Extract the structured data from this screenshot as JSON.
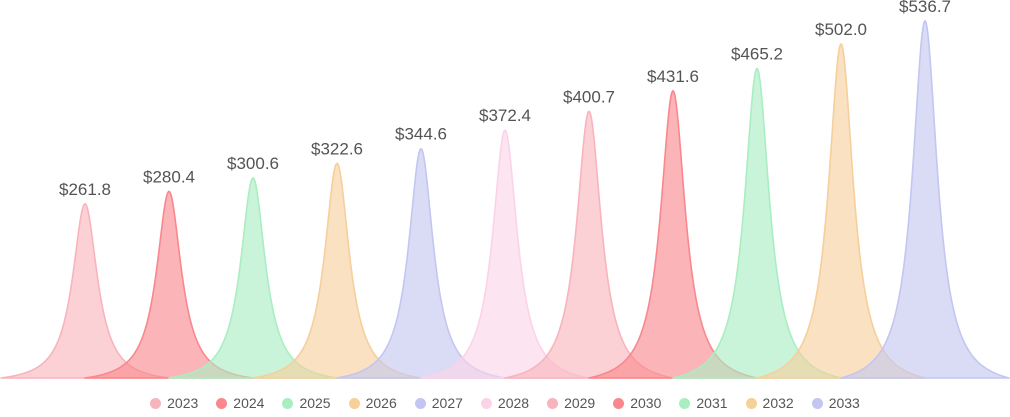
{
  "chart_data": {
    "type": "area",
    "subtype": "pictorial-spike-series",
    "title": "",
    "xlabel": "",
    "ylabel": "",
    "categories": [
      "2023",
      "2024",
      "2025",
      "2026",
      "2027",
      "2028",
      "2029",
      "2030",
      "2031",
      "2032",
      "2033"
    ],
    "values": [
      261.8,
      280.4,
      300.6,
      322.6,
      344.6,
      372.4,
      400.7,
      431.6,
      465.2,
      502.0,
      536.7
    ],
    "value_labels": [
      "$261.8",
      "$280.4",
      "$300.6",
      "$322.6",
      "$344.6",
      "$372.4",
      "$400.7",
      "$431.6",
      "$465.2",
      "$502.0",
      "$536.7"
    ],
    "value_prefix": "$",
    "ylim": [
      0,
      568
    ],
    "grid": false,
    "axes_visible": false,
    "legend_position": "bottom",
    "series_colors": [
      "#f8b4bc",
      "#f9878d",
      "#a9eec1",
      "#f6cf9b",
      "#c3c6f1",
      "#fbd3e8",
      "#f8b4bc",
      "#f9878d",
      "#a9eec1",
      "#f6cf9b",
      "#c3c6f1"
    ],
    "fill_opacity": 0.62,
    "stroke_width": 1.6,
    "label_color": "#545454",
    "legend_text_color": "#565656"
  }
}
